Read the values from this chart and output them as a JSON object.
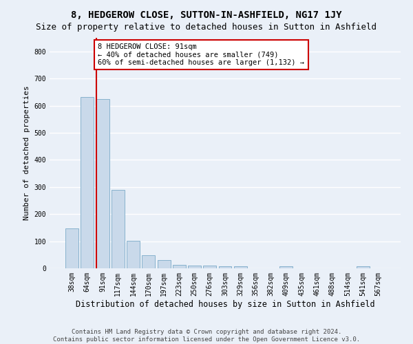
{
  "title": "8, HEDGEROW CLOSE, SUTTON-IN-ASHFIELD, NG17 1JY",
  "subtitle": "Size of property relative to detached houses in Sutton in Ashfield",
  "xlabel": "Distribution of detached houses by size in Sutton in Ashfield",
  "ylabel": "Number of detached properties",
  "categories": [
    "38sqm",
    "64sqm",
    "91sqm",
    "117sqm",
    "144sqm",
    "170sqm",
    "197sqm",
    "223sqm",
    "250sqm",
    "276sqm",
    "303sqm",
    "329sqm",
    "356sqm",
    "382sqm",
    "409sqm",
    "435sqm",
    "461sqm",
    "488sqm",
    "514sqm",
    "541sqm",
    "567sqm"
  ],
  "values": [
    148,
    631,
    624,
    288,
    101,
    48,
    30,
    12,
    11,
    10,
    8,
    7,
    0,
    0,
    8,
    0,
    0,
    0,
    0,
    8,
    0
  ],
  "bar_color": "#c9d9ea",
  "bar_edge_color": "#7aaac8",
  "highlight_index": 2,
  "highlight_line_color": "#cc0000",
  "annotation_text": "8 HEDGEROW CLOSE: 91sqm\n← 40% of detached houses are smaller (749)\n60% of semi-detached houses are larger (1,132) →",
  "annotation_box_color": "#ffffff",
  "annotation_box_edge": "#cc0000",
  "ylim": [
    0,
    850
  ],
  "yticks": [
    0,
    100,
    200,
    300,
    400,
    500,
    600,
    700,
    800
  ],
  "footer_line1": "Contains HM Land Registry data © Crown copyright and database right 2024.",
  "footer_line2": "Contains public sector information licensed under the Open Government Licence v3.0.",
  "bg_color": "#eaf0f8",
  "plot_bg_color": "#eaf0f8",
  "grid_color": "#ffffff",
  "title_fontsize": 10,
  "subtitle_fontsize": 9,
  "xlabel_fontsize": 8.5,
  "ylabel_fontsize": 8,
  "tick_fontsize": 7,
  "footer_fontsize": 6.5
}
